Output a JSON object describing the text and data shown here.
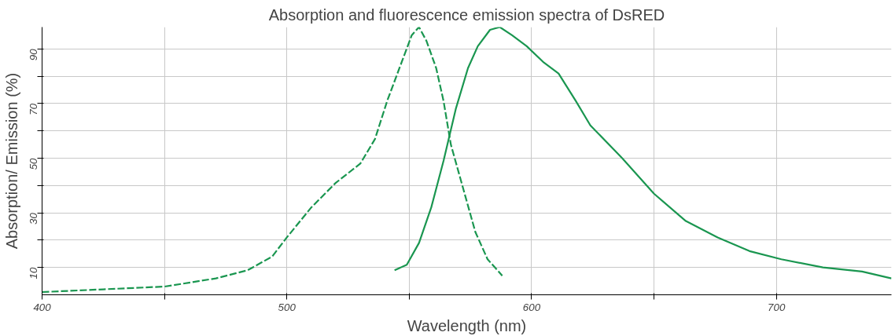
{
  "chart_data": {
    "type": "line",
    "title": "Absorption and fluorescence emission spectra of DsRED",
    "xlabel": "Wavelength (nm)",
    "ylabel": "Absorption/ Emission (%)",
    "xlim": [
      400,
      747
    ],
    "ylim": [
      0,
      98
    ],
    "xticks": [
      400,
      {
        "value": 450,
        "label": null
      },
      500,
      {
        "value": 550,
        "label": null
      },
      600,
      {
        "value": 650,
        "label": null
      },
      700
    ],
    "yticks": [
      10,
      {
        "value": 20,
        "label": null
      },
      30,
      {
        "value": 40,
        "label": null
      },
      50,
      {
        "value": 60,
        "label": null
      },
      70,
      {
        "value": 80,
        "label": null
      },
      90
    ],
    "grid": true,
    "marker": "none",
    "series": [
      {
        "color": "#1a9650",
        "line_style": "dashed",
        "x": [
          400,
          425,
          450,
          471,
          484,
          494,
          500,
          510,
          520,
          530,
          536,
          541,
          546,
          551,
          554,
          557,
          561,
          564,
          567,
          572,
          577,
          582,
          588
        ],
        "values": [
          1,
          2,
          3,
          6,
          9,
          14,
          21,
          32,
          41,
          48,
          57,
          71,
          83,
          95,
          98,
          93,
          83,
          71,
          55,
          39,
          23,
          13,
          7
        ]
      },
      {
        "color": "#1a9650",
        "line_style": "solid",
        "x": [
          544,
          549,
          554,
          559,
          564,
          569,
          574,
          578,
          583,
          587,
          592,
          598,
          605,
          611,
          618,
          624,
          637,
          650,
          663,
          676,
          689,
          702,
          719,
          735,
          747
        ],
        "values": [
          9,
          11,
          19,
          32,
          49,
          68,
          83,
          91,
          97,
          98,
          95,
          91,
          85,
          81,
          71,
          62,
          50,
          37,
          27,
          21,
          16,
          13,
          10,
          8.5,
          6
        ]
      }
    ]
  }
}
